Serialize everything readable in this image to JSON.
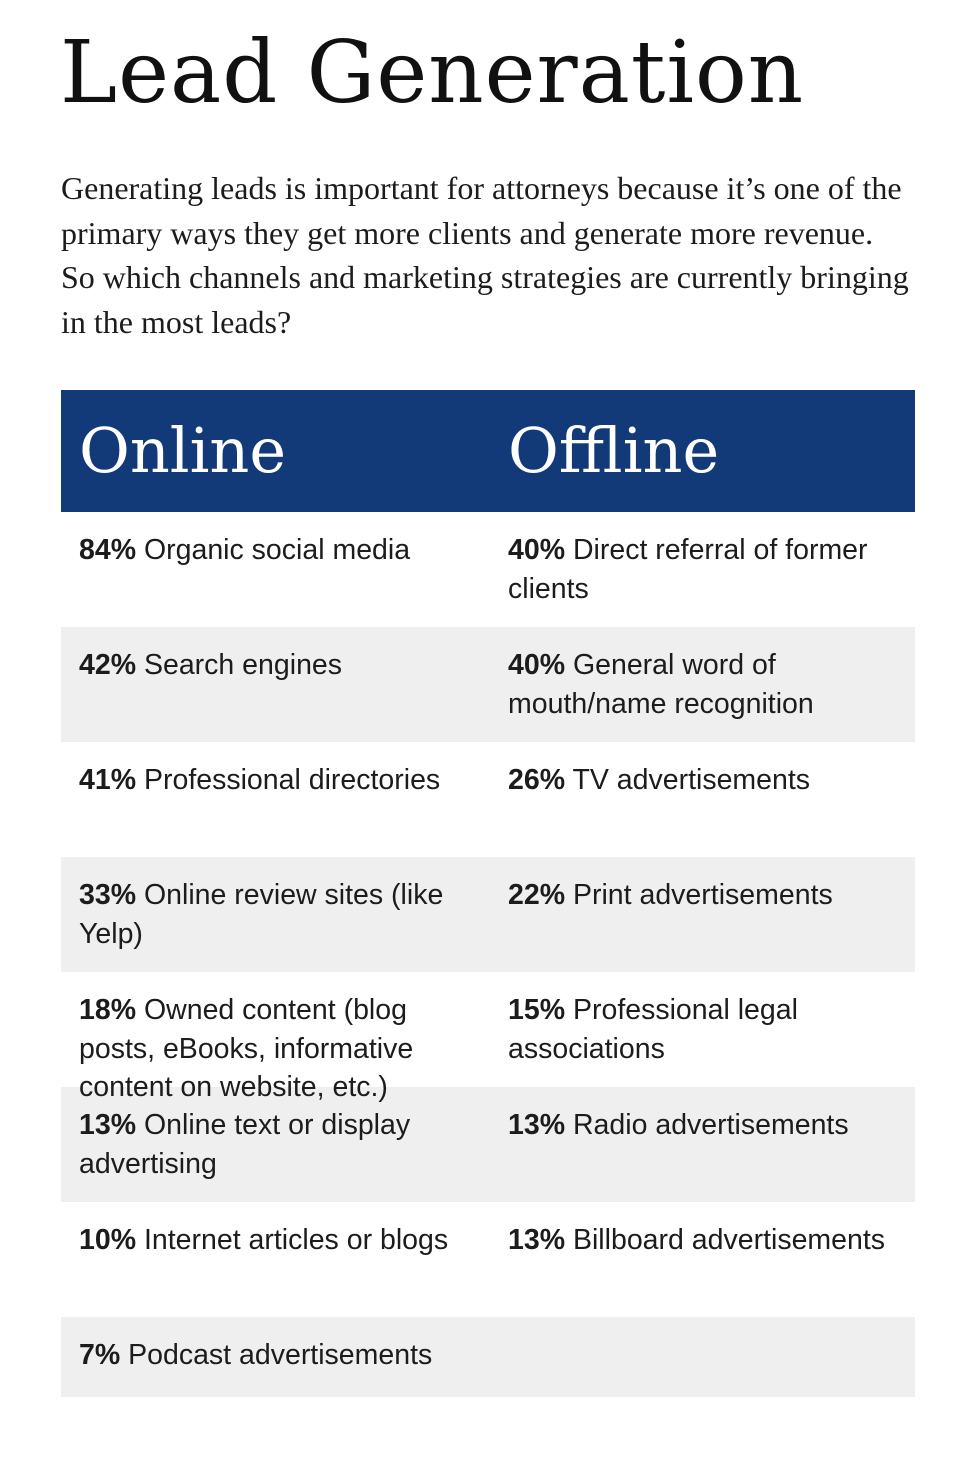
{
  "title": "Lead Generation",
  "intro": "Generating leads is important for attorneys because it’s one of the primary ways they get more clients and generate more revenue. So which channels and marketing strategies are currently bringing in the most leads?",
  "table": {
    "headers": {
      "online": "Online",
      "offline": "Offline"
    },
    "header_color": "#133a78",
    "stripe_color": "#efefef",
    "rows": [
      {
        "online": {
          "pct": "84%",
          "label": " Organic social media"
        },
        "offline": {
          "pct": "40%",
          "label": " Direct referral of former clients"
        }
      },
      {
        "online": {
          "pct": "42%",
          "label": " Search engines"
        },
        "offline": {
          "pct": "40%",
          "label": " General word of mouth/name recognition"
        }
      },
      {
        "online": {
          "pct": "41%",
          "label": " Professional directories"
        },
        "offline": {
          "pct": "26%",
          "label": " TV advertisements"
        }
      },
      {
        "online": {
          "pct": "33%",
          "label": " Online review sites (like Yelp)"
        },
        "offline": {
          "pct": "22%",
          "label": " Print advertisements"
        }
      },
      {
        "online": {
          "pct": "18%",
          "label": " Owned content (blog posts, eBooks, informative content on website, etc.)"
        },
        "offline": {
          "pct": "15%",
          "label": " Professional legal associations"
        }
      },
      {
        "online": {
          "pct": "13%",
          "label": " Online text or display advertising"
        },
        "offline": {
          "pct": "13%",
          "label": " Radio advertisements"
        }
      },
      {
        "online": {
          "pct": "10%",
          "label": " Internet articles or blogs"
        },
        "offline": {
          "pct": "13%",
          "label": " Billboard advertisements"
        }
      },
      {
        "online": {
          "pct": "7%",
          "label": " Podcast advertisements"
        },
        "offline": {
          "pct": "",
          "label": ""
        }
      }
    ]
  }
}
